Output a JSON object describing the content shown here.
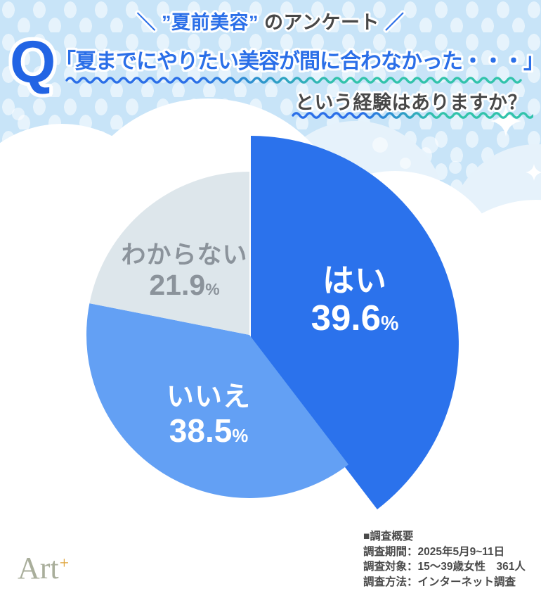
{
  "header": {
    "title_left": "＼ ”夏前美容”",
    "title_mid": " のアンケート",
    "title_right": " ／",
    "q_mark": "Q",
    "question_line1": "「夏までにやりたい美容が間に合わなかった・・・」",
    "question_line2": "という経験はありますか？"
  },
  "chart_data": {
    "type": "pie",
    "title": "夏までにやりたい美容が間に合わなかった・・・という経験はありますか？",
    "unit": "%",
    "start_angle_deg": 0,
    "direction": "clockwise",
    "legend_position": "on-slice",
    "slices": [
      {
        "label": "はい",
        "value": 39.6,
        "pct": "39.6",
        "color": "#2b72ec",
        "text_color": "#ffffff",
        "emphasized": true
      },
      {
        "label": "いいえ",
        "value": 38.5,
        "pct": "38.5",
        "color": "#63a0f4",
        "text_color": "#ffffff",
        "emphasized": false
      },
      {
        "label": "わからない",
        "value": 21.9,
        "pct": "21.9",
        "color": "#dde6eb",
        "text_color": "#8b939b",
        "emphasized": false
      }
    ]
  },
  "survey_info": {
    "heading": "■調査概要",
    "rows": [
      "調査期間：2025年5月9~11日",
      "調査対象：15〜39歳女性　361人",
      "調査方法：インターネット調査"
    ]
  },
  "logo": {
    "text": "Art",
    "plus": "+"
  },
  "palette": {
    "sky": "#c8e4f8",
    "cloud_white": "#ffffff",
    "cloud_tint": "#e6f2fb",
    "accent_blue": "#2b6fe8",
    "accent_teal": "#32c3ab",
    "dark_text": "#484848",
    "survey_text": "#4a4a4a",
    "logo_green": "#a9ae9b",
    "logo_gold": "#dfa43c"
  }
}
